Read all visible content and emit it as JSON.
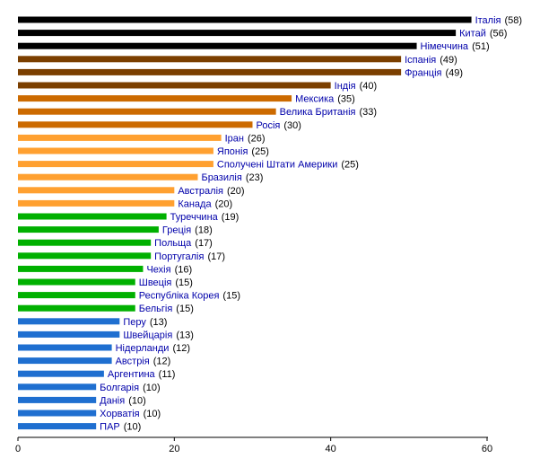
{
  "chart_data": {
    "type": "bar",
    "orientation": "horizontal",
    "xlim": [
      0,
      60
    ],
    "xticks": [
      0,
      20,
      40,
      60
    ],
    "grid": false,
    "label_color": "#0000aa",
    "value_color": "#000000",
    "items": [
      {
        "label": "Італія",
        "value": 58,
        "value_text": "(58)",
        "color": "#000000"
      },
      {
        "label": "Китай",
        "value": 56,
        "value_text": "(56)",
        "color": "#000000"
      },
      {
        "label": "Німеччина",
        "value": 51,
        "value_text": "(51)",
        "color": "#000000"
      },
      {
        "label": "Іспанія",
        "value": 49,
        "value_text": "(49)",
        "color": "#7b3f00"
      },
      {
        "label": "Франція",
        "value": 49,
        "value_text": "(49)",
        "color": "#7b3f00"
      },
      {
        "label": "Індія",
        "value": 40,
        "value_text": "(40)",
        "color": "#7b3f00"
      },
      {
        "label": "Мексика",
        "value": 35,
        "value_text": "(35)",
        "color": "#cc6a00"
      },
      {
        "label": "Велика Британія",
        "value": 33,
        "value_text": "(33)",
        "color": "#cc6a00"
      },
      {
        "label": "Росія",
        "value": 30,
        "value_text": "(30)",
        "color": "#cc6a00"
      },
      {
        "label": "Іран",
        "value": 26,
        "value_text": "(26)",
        "color": "#ffa030"
      },
      {
        "label": "Японія",
        "value": 25,
        "value_text": "(25)",
        "color": "#ffa030"
      },
      {
        "label": "Сполучені Штати Америки",
        "value": 25,
        "value_text": "(25)",
        "color": "#ffa030"
      },
      {
        "label": "Бразилія",
        "value": 23,
        "value_text": "(23)",
        "color": "#ffa030"
      },
      {
        "label": "Австралія",
        "value": 20,
        "value_text": "(20)",
        "color": "#ffa030"
      },
      {
        "label": "Канада",
        "value": 20,
        "value_text": "(20)",
        "color": "#ffa030"
      },
      {
        "label": "Туреччина",
        "value": 19,
        "value_text": "(19)",
        "color": "#00b000"
      },
      {
        "label": "Греція",
        "value": 18,
        "value_text": "(18)",
        "color": "#00b000"
      },
      {
        "label": "Польща",
        "value": 17,
        "value_text": "(17)",
        "color": "#00b000"
      },
      {
        "label": "Португалія",
        "value": 17,
        "value_text": "(17)",
        "color": "#00b000"
      },
      {
        "label": "Чехія",
        "value": 16,
        "value_text": "(16)",
        "color": "#00b000"
      },
      {
        "label": "Швеція",
        "value": 15,
        "value_text": "(15)",
        "color": "#00b000"
      },
      {
        "label": "Республіка Корея",
        "value": 15,
        "value_text": "(15)",
        "color": "#00b000"
      },
      {
        "label": "Бельгія",
        "value": 15,
        "value_text": "(15)",
        "color": "#00b000"
      },
      {
        "label": "Перу",
        "value": 13,
        "value_text": "(13)",
        "color": "#1f6fd0"
      },
      {
        "label": "Швейцарія",
        "value": 13,
        "value_text": "(13)",
        "color": "#1f6fd0"
      },
      {
        "label": "Нідерланди",
        "value": 12,
        "value_text": "(12)",
        "color": "#1f6fd0"
      },
      {
        "label": "Австрія",
        "value": 12,
        "value_text": "(12)",
        "color": "#1f6fd0"
      },
      {
        "label": "Аргентина",
        "value": 11,
        "value_text": "(11)",
        "color": "#1f6fd0"
      },
      {
        "label": "Болгарія",
        "value": 10,
        "value_text": "(10)",
        "color": "#1f6fd0"
      },
      {
        "label": "Данія",
        "value": 10,
        "value_text": "(10)",
        "color": "#1f6fd0"
      },
      {
        "label": "Хорватія",
        "value": 10,
        "value_text": "(10)",
        "color": "#1f6fd0"
      },
      {
        "label": "ПАР",
        "value": 10,
        "value_text": "(10)",
        "color": "#1f6fd0"
      }
    ]
  }
}
